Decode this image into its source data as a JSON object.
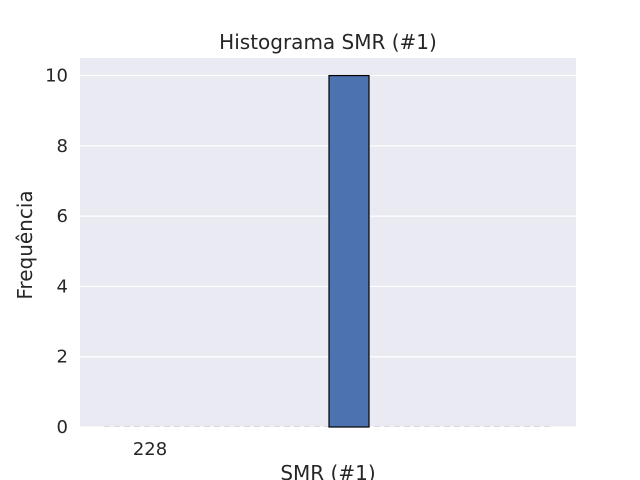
{
  "chart_data": {
    "type": "bar",
    "title": "Histograma SMR (#1)",
    "xlabel": "SMR (#1)",
    "ylabel": "Frequência",
    "xticks": [
      "228"
    ],
    "yticks": [
      0,
      2,
      4,
      6,
      8,
      10
    ],
    "ylim": [
      0,
      10.5
    ],
    "bins": [
      {
        "value": 10
      }
    ],
    "grid": true,
    "colors": {
      "plot_background": "#eaeaf2",
      "bar_fill": "#4c72b0",
      "bar_edge": "#000000",
      "grid": "#ffffff",
      "text": "#262626"
    }
  }
}
